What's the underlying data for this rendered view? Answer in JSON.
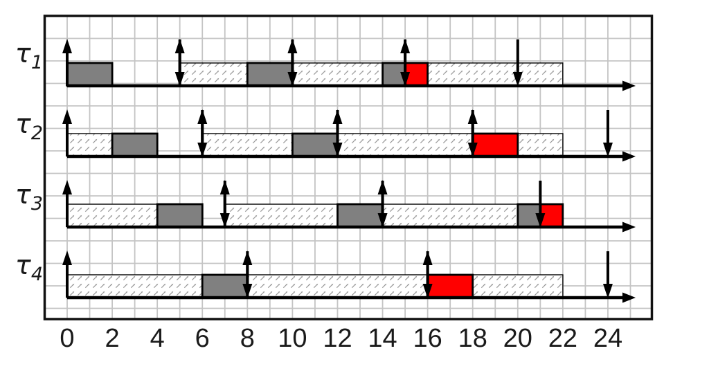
{
  "chart_data": {
    "type": "gantt",
    "title": "",
    "xlabel": "",
    "x_ticks": [
      0,
      2,
      4,
      6,
      8,
      10,
      12,
      14,
      16,
      18,
      20,
      22,
      24
    ],
    "x_unit_range": [
      -1,
      26
    ],
    "timeline_arrow_end": 25,
    "grid": "on",
    "tasks": [
      {
        "label": {
          "base": "τ",
          "sub": "1"
        },
        "release_arrows": [
          0,
          5,
          10,
          15
        ],
        "deadline_arrows": [
          5,
          10,
          15,
          20
        ],
        "execution_gray": [
          [
            0,
            2
          ],
          [
            8,
            10
          ],
          [
            14,
            15
          ]
        ],
        "deadline_miss_red": [
          [
            15,
            16
          ]
        ],
        "ready_hatched": [
          [
            5,
            8
          ],
          [
            10,
            14
          ],
          [
            16,
            22
          ]
        ]
      },
      {
        "label": {
          "base": "τ",
          "sub": "2"
        },
        "release_arrows": [
          0,
          6,
          12,
          18
        ],
        "deadline_arrows": [
          6,
          12,
          18,
          24
        ],
        "execution_gray": [
          [
            2,
            4
          ],
          [
            10,
            12
          ]
        ],
        "deadline_miss_red": [
          [
            18,
            20
          ]
        ],
        "ready_hatched": [
          [
            0,
            2
          ],
          [
            6,
            10
          ],
          [
            12,
            18
          ],
          [
            20,
            22
          ]
        ]
      },
      {
        "label": {
          "base": "τ",
          "sub": "3"
        },
        "release_arrows": [
          0,
          7,
          14
        ],
        "deadline_arrows": [
          7,
          14,
          21
        ],
        "execution_gray": [
          [
            4,
            6
          ],
          [
            12,
            14
          ],
          [
            20,
            21
          ]
        ],
        "deadline_miss_red": [
          [
            21,
            22
          ]
        ],
        "ready_hatched": [
          [
            0,
            4
          ],
          [
            7,
            12
          ],
          [
            14,
            20
          ]
        ]
      },
      {
        "label": {
          "base": "τ",
          "sub": "4"
        },
        "release_arrows": [
          0,
          8,
          16
        ],
        "deadline_arrows": [
          8,
          16,
          24
        ],
        "execution_gray": [
          [
            6,
            8
          ]
        ],
        "deadline_miss_red": [
          [
            16,
            18
          ]
        ],
        "ready_hatched": [
          [
            0,
            6
          ],
          [
            8,
            16
          ],
          [
            18,
            22
          ]
        ]
      }
    ],
    "colors": {
      "execution": "#808080",
      "miss": "#ff0000",
      "hatch": "#999999",
      "block_border": "#000000",
      "grid": "#c4c4c4",
      "frame": "#111111",
      "axis": "#000000",
      "text": "#1a1a1a",
      "background": "#ffffff"
    }
  }
}
